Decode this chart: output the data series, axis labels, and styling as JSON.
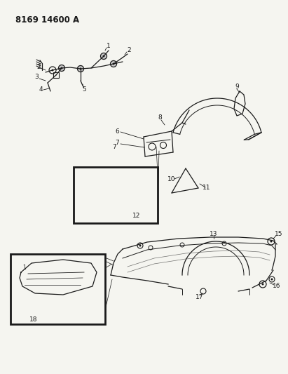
{
  "title": "8169 14600 A",
  "bg_color": "#f5f5f0",
  "line_color": "#1a1a1a",
  "title_fontsize": 8.5,
  "label_fontsize": 6.5,
  "figsize": [
    4.11,
    5.33
  ],
  "dpi": 100
}
